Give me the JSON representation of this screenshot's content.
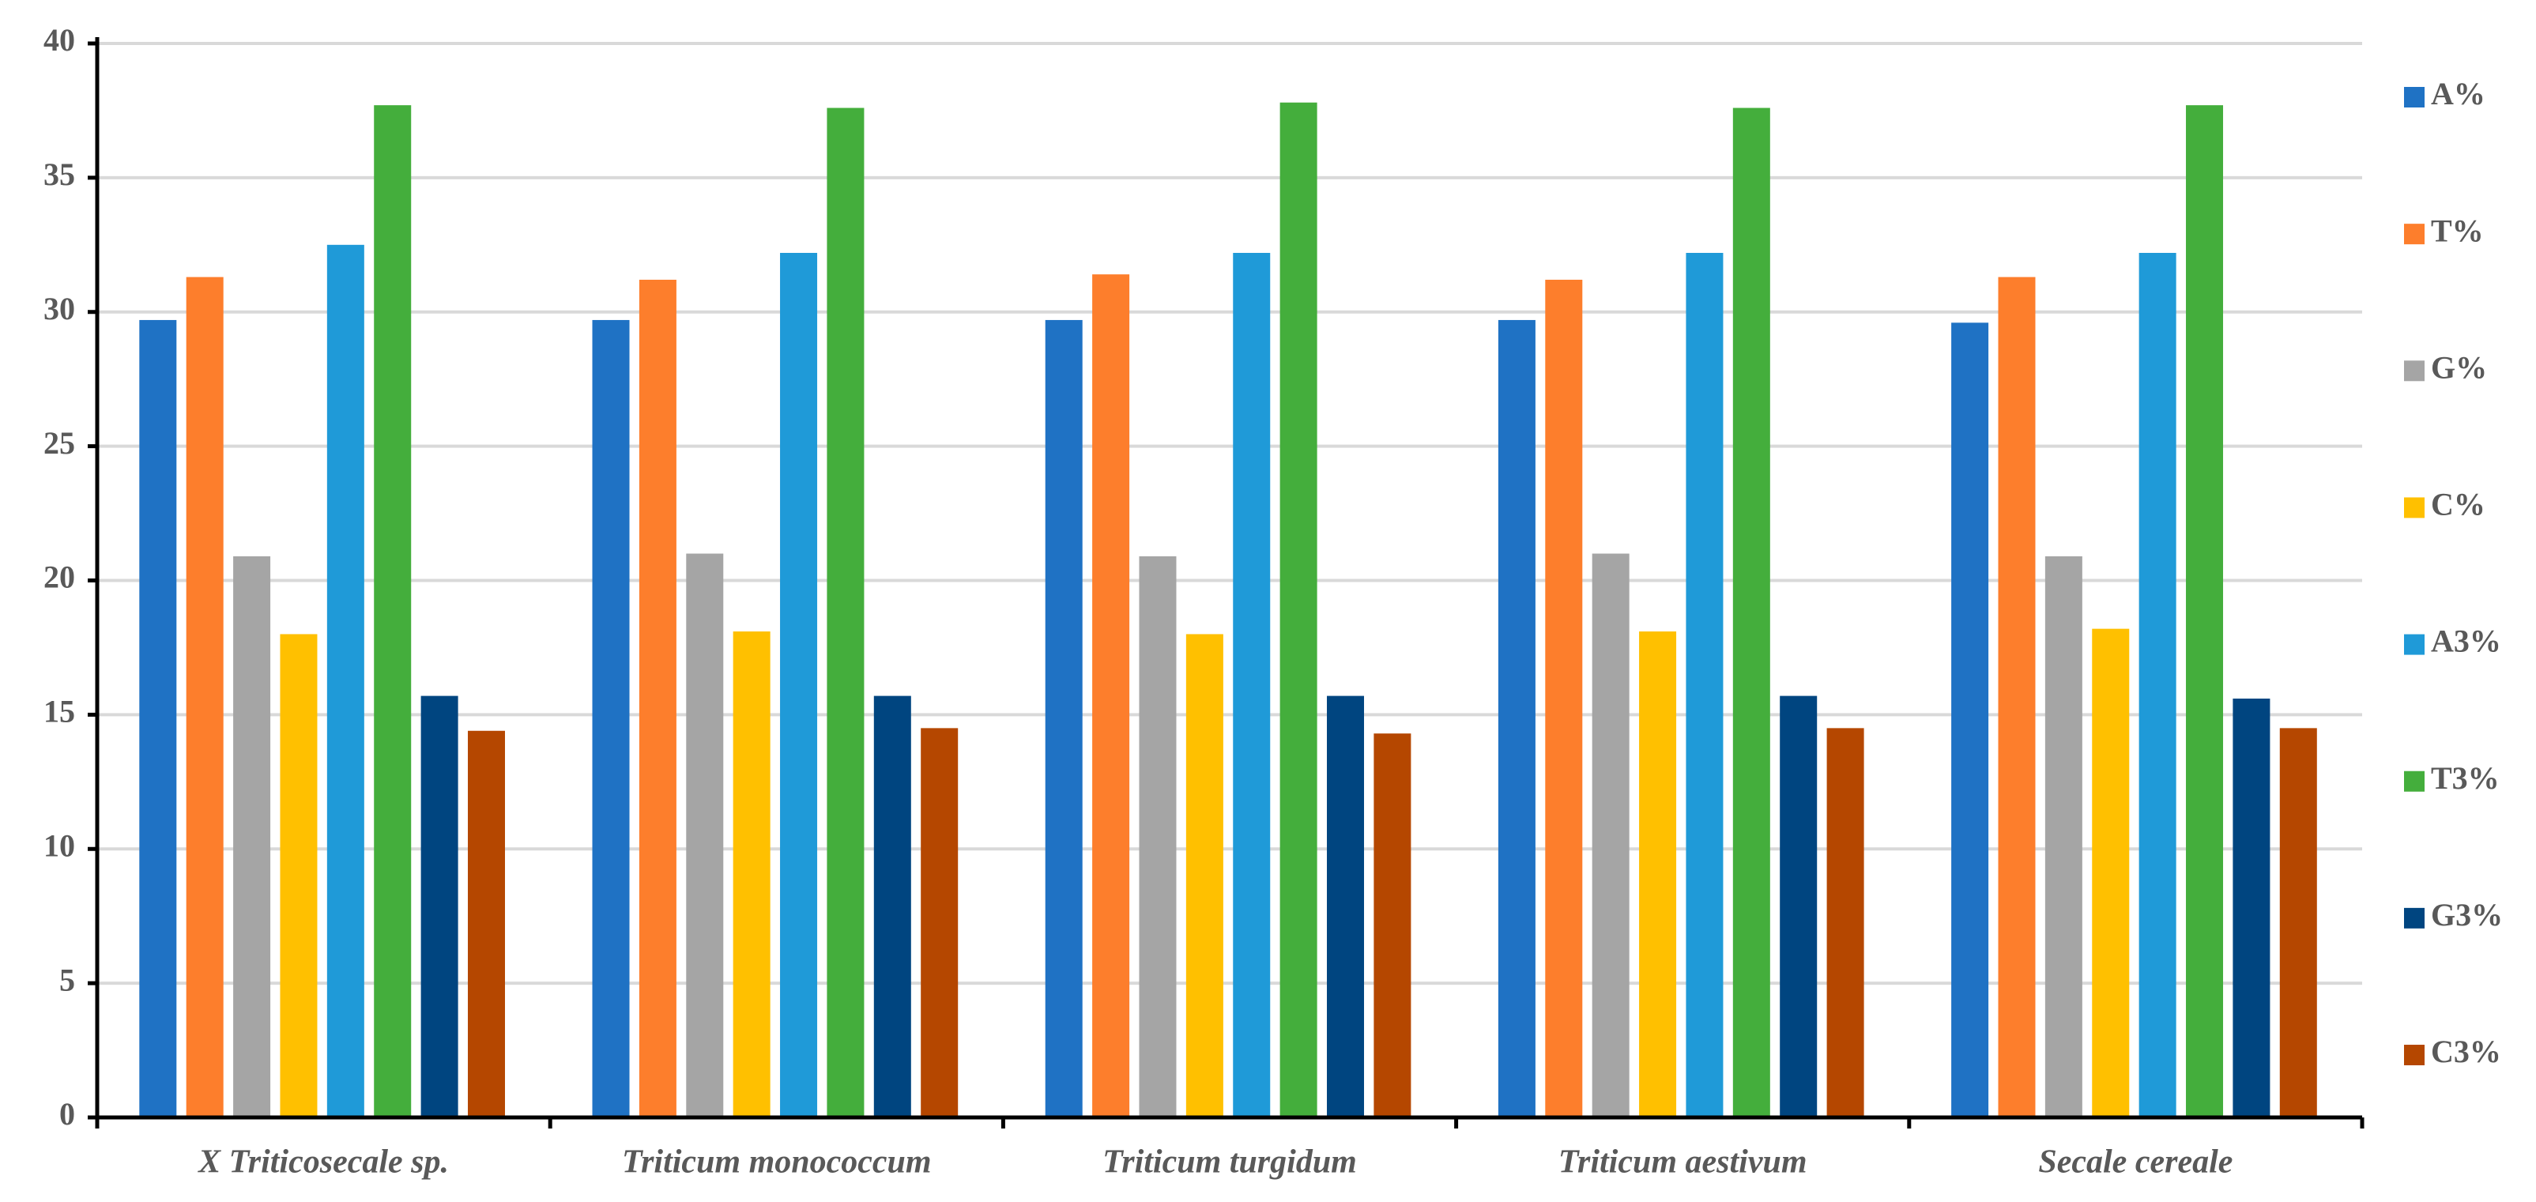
{
  "chart_data": {
    "type": "bar",
    "categories": [
      "X Triticosecale sp.",
      "Triticum monococcum",
      "Triticum turgidum",
      "Triticum aestivum",
      "Secale cereale"
    ],
    "series": [
      {
        "name": "A%",
        "color": "#1f72c4",
        "values": [
          29.7,
          29.7,
          29.7,
          29.7,
          29.6
        ]
      },
      {
        "name": "T%",
        "color": "#fd7e2c",
        "values": [
          31.3,
          31.2,
          31.4,
          31.2,
          31.3
        ]
      },
      {
        "name": "G%",
        "color": "#a5a5a5",
        "values": [
          20.9,
          21.0,
          20.9,
          21.0,
          20.9
        ]
      },
      {
        "name": "C%",
        "color": "#ffc000",
        "values": [
          18.0,
          18.1,
          18.0,
          18.1,
          18.2
        ]
      },
      {
        "name": "A3%",
        "color": "#1f9ad8",
        "values": [
          32.5,
          32.2,
          32.2,
          32.2,
          32.2
        ]
      },
      {
        "name": "T3%",
        "color": "#44ae3c",
        "values": [
          37.7,
          37.6,
          37.8,
          37.6,
          37.7
        ]
      },
      {
        "name": "G3%",
        "color": "#004580",
        "values": [
          15.7,
          15.7,
          15.7,
          15.7,
          15.6
        ]
      },
      {
        "name": "C3%",
        "color": "#b54700",
        "values": [
          14.4,
          14.5,
          14.3,
          14.5,
          14.5
        ]
      }
    ],
    "ylim": [
      0,
      40
    ],
    "yticks": [
      0,
      5,
      10,
      15,
      20,
      25,
      30,
      35,
      40
    ],
    "grid": true,
    "legend": "right"
  }
}
